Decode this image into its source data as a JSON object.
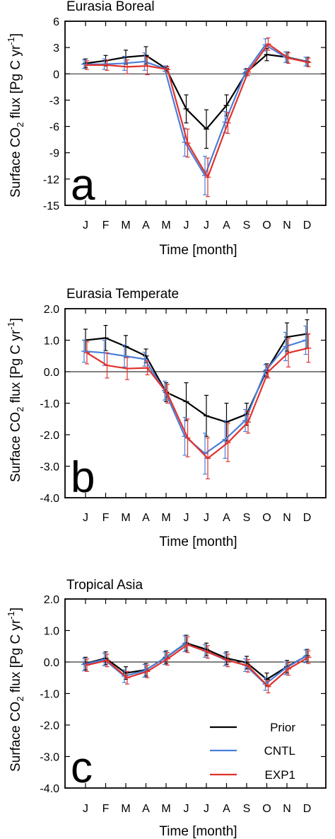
{
  "chart_data": [
    {
      "type": "line",
      "title": "Eurasia Boreal",
      "panel_letter": "a",
      "xlabel": "Time [month]",
      "ylabel": "Surface CO2 flux [Pg C yr-1]",
      "categories": [
        "J",
        "F",
        "M",
        "A",
        "M",
        "J",
        "J",
        "A",
        "S",
        "O",
        "N",
        "D"
      ],
      "ylim": [
        -15,
        6
      ],
      "yticks": [
        6,
        3,
        0,
        -3,
        -6,
        -9,
        -12,
        -15
      ],
      "ytick_labels": [
        "6",
        "3",
        "0",
        "-3",
        "-6",
        "-9",
        "-12",
        "-15"
      ],
      "zero_line": true,
      "series": [
        {
          "name": "Prior",
          "color": "#000000",
          "values": [
            1.2,
            1.5,
            1.9,
            2.1,
            0.6,
            -4.0,
            -6.3,
            -3.6,
            0.2,
            2.2,
            1.9,
            1.4
          ],
          "errors": [
            0.5,
            0.6,
            0.8,
            1.0,
            0.3,
            1.6,
            2.2,
            1.2,
            0.4,
            0.7,
            0.6,
            0.5
          ]
        },
        {
          "name": "CNTL",
          "color": "#4a7fd9",
          "values": [
            1.1,
            1.1,
            1.2,
            1.4,
            0.6,
            -7.8,
            -11.6,
            -5.5,
            0.1,
            3.3,
            1.9,
            1.4
          ],
          "errors": [
            0.5,
            0.6,
            0.8,
            1.0,
            0.3,
            1.6,
            2.2,
            1.2,
            0.4,
            0.7,
            0.6,
            0.5
          ]
        },
        {
          "name": "EXP1",
          "color": "#e0322c",
          "values": [
            1.0,
            1.0,
            0.8,
            0.9,
            0.5,
            -7.9,
            -11.8,
            -5.6,
            0.2,
            3.4,
            1.8,
            1.3
          ],
          "errors": [
            0.5,
            0.6,
            0.8,
            1.0,
            0.3,
            1.6,
            2.2,
            1.2,
            0.4,
            0.7,
            0.6,
            0.5
          ]
        }
      ]
    },
    {
      "type": "line",
      "title": "Eurasia Temperate",
      "panel_letter": "b",
      "xlabel": "Time [month]",
      "ylabel": "Surface CO2 flux [Pg C yr-1]",
      "categories": [
        "J",
        "F",
        "M",
        "A",
        "M",
        "J",
        "J",
        "A",
        "S",
        "O",
        "N",
        "D"
      ],
      "ylim": [
        -4,
        2
      ],
      "yticks": [
        2,
        1,
        0,
        -1,
        -2,
        -3,
        -4
      ],
      "ytick_labels": [
        "2.0",
        "1.0",
        "0.0",
        "-1.0",
        "-2.0",
        "-3.0",
        "-4.0"
      ],
      "zero_line": true,
      "series": [
        {
          "name": "Prior",
          "color": "#000000",
          "values": [
            1.0,
            1.07,
            0.8,
            0.5,
            -0.65,
            -0.95,
            -1.4,
            -1.6,
            -1.35,
            0.05,
            1.1,
            1.2
          ],
          "errors": [
            0.35,
            0.4,
            0.35,
            0.22,
            0.3,
            0.6,
            0.65,
            0.6,
            0.35,
            0.2,
            0.45,
            0.45
          ]
        },
        {
          "name": "CNTL",
          "color": "#4a7fd9",
          "values": [
            0.65,
            0.6,
            0.5,
            0.4,
            -0.6,
            -2.05,
            -2.6,
            -2.15,
            -1.55,
            0.02,
            0.8,
            1.0
          ],
          "errors": [
            0.35,
            0.4,
            0.35,
            0.22,
            0.3,
            0.6,
            0.65,
            0.6,
            0.35,
            0.2,
            0.45,
            0.45
          ]
        },
        {
          "name": "EXP1",
          "color": "#e0322c",
          "values": [
            0.6,
            0.2,
            0.1,
            0.12,
            -0.7,
            -2.1,
            -2.75,
            -2.25,
            -1.6,
            0.0,
            0.6,
            0.75
          ],
          "errors": [
            0.35,
            0.4,
            0.35,
            0.22,
            0.3,
            0.6,
            0.65,
            0.6,
            0.35,
            0.2,
            0.45,
            0.45
          ]
        }
      ]
    },
    {
      "type": "line",
      "title": "Tropical Asia",
      "panel_letter": "c",
      "xlabel": "Time [month]",
      "ylabel": "Surface CO2 flux [Pg C yr-1]",
      "categories": [
        "J",
        "F",
        "M",
        "A",
        "M",
        "J",
        "J",
        "A",
        "S",
        "O",
        "N",
        "D"
      ],
      "ylim": [
        -4,
        2
      ],
      "yticks": [
        2,
        1,
        0,
        -1,
        -2,
        -3,
        -4
      ],
      "ytick_labels": [
        "2.0",
        "1.0",
        "0.0",
        "-1.0",
        "-2.0",
        "-3.0",
        "-4.0"
      ],
      "zero_line": true,
      "legend": {
        "placement": "bottom-right",
        "entries": [
          "Prior",
          "CNTL",
          "EXP1"
        ]
      },
      "series": [
        {
          "name": "Prior",
          "color": "#000000",
          "values": [
            -0.05,
            0.12,
            -0.35,
            -0.25,
            0.15,
            0.6,
            0.4,
            0.12,
            -0.02,
            -0.55,
            -0.15,
            0.2
          ],
          "errors": [
            0.2,
            0.2,
            0.2,
            0.2,
            0.2,
            0.25,
            0.2,
            0.2,
            0.2,
            0.2,
            0.2,
            0.2
          ]
        },
        {
          "name": "CNTL",
          "color": "#4a7fd9",
          "values": [
            -0.08,
            0.08,
            -0.45,
            -0.28,
            0.12,
            0.58,
            0.35,
            0.08,
            -0.1,
            -0.7,
            -0.2,
            0.18
          ],
          "errors": [
            0.2,
            0.2,
            0.2,
            0.2,
            0.2,
            0.25,
            0.2,
            0.2,
            0.2,
            0.2,
            0.2,
            0.2
          ]
        },
        {
          "name": "EXP1",
          "color": "#e0322c",
          "values": [
            -0.1,
            0.05,
            -0.5,
            -0.3,
            0.1,
            0.55,
            0.32,
            0.05,
            -0.12,
            -0.78,
            -0.22,
            0.15
          ],
          "errors": [
            0.2,
            0.2,
            0.2,
            0.2,
            0.2,
            0.25,
            0.2,
            0.2,
            0.2,
            0.2,
            0.2,
            0.2
          ]
        }
      ]
    }
  ]
}
